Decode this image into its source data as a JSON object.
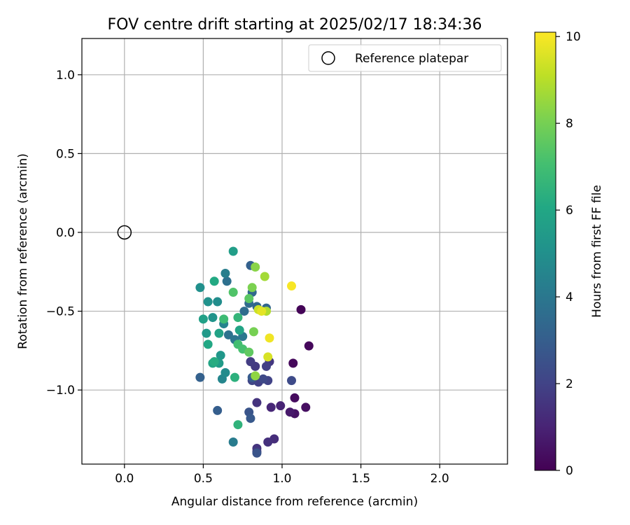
{
  "chart_data": {
    "type": "scatter",
    "title": "FOV centre drift starting at 2025/02/17 18:34:36",
    "xlabel": "Angular distance from reference (arcmin)",
    "ylabel": "Rotation from reference (arcmin)",
    "xlim": [
      -0.27,
      2.43
    ],
    "ylim": [
      -1.47,
      1.23
    ],
    "xticks": [
      0.0,
      0.5,
      1.0,
      1.5,
      2.0
    ],
    "xtick_labels": [
      "0.0",
      "0.5",
      "1.0",
      "1.5",
      "2.0"
    ],
    "yticks": [
      -1.0,
      -0.5,
      0.0,
      0.5,
      1.0
    ],
    "ytick_labels": [
      "−1.0",
      "−0.5",
      "0.0",
      "0.5",
      "1.0"
    ],
    "grid": true,
    "legend": {
      "label": "Reference platepar",
      "placement": "top-right"
    },
    "reference": {
      "x": 0.0,
      "y": 0.0
    },
    "colorbar": {
      "label": "Hours from first FF file",
      "colormap": "viridis",
      "range": [
        0,
        10.1
      ],
      "ticks": [
        0,
        2,
        4,
        6,
        8,
        10
      ],
      "tick_labels": [
        "0",
        "2",
        "4",
        "6",
        "8",
        "10"
      ]
    },
    "points": [
      {
        "x": 1.12,
        "y": -0.49,
        "c": 0.1
      },
      {
        "x": 1.17,
        "y": -0.72,
        "c": 0.2
      },
      {
        "x": 1.07,
        "y": -0.83,
        "c": 0.2
      },
      {
        "x": 1.08,
        "y": -1.05,
        "c": 0.3
      },
      {
        "x": 1.15,
        "y": -1.11,
        "c": 0.4
      },
      {
        "x": 1.08,
        "y": -1.15,
        "c": 0.5
      },
      {
        "x": 1.05,
        "y": -1.14,
        "c": 0.7
      },
      {
        "x": 0.99,
        "y": -1.1,
        "c": 1.0
      },
      {
        "x": 0.93,
        "y": -1.11,
        "c": 1.1
      },
      {
        "x": 0.95,
        "y": -1.31,
        "c": 1.3
      },
      {
        "x": 0.91,
        "y": -1.33,
        "c": 1.4
      },
      {
        "x": 0.84,
        "y": -1.08,
        "c": 1.5
      },
      {
        "x": 0.92,
        "y": -0.82,
        "c": 1.6
      },
      {
        "x": 0.84,
        "y": -1.37,
        "c": 1.5
      },
      {
        "x": 0.84,
        "y": -1.39,
        "c": 1.7
      },
      {
        "x": 0.83,
        "y": -0.85,
        "c": 1.7
      },
      {
        "x": 0.8,
        "y": -0.82,
        "c": 1.8
      },
      {
        "x": 0.85,
        "y": -0.95,
        "c": 1.9
      },
      {
        "x": 0.9,
        "y": -0.85,
        "c": 1.9
      },
      {
        "x": 0.91,
        "y": -0.94,
        "c": 2.0
      },
      {
        "x": 0.81,
        "y": -0.94,
        "c": 2.1
      },
      {
        "x": 0.88,
        "y": -0.93,
        "c": 2.2
      },
      {
        "x": 1.06,
        "y": -0.94,
        "c": 2.3
      },
      {
        "x": 0.84,
        "y": -1.4,
        "c": 2.6
      },
      {
        "x": 0.79,
        "y": -1.14,
        "c": 2.6
      },
      {
        "x": 0.8,
        "y": -1.18,
        "c": 2.8
      },
      {
        "x": 0.81,
        "y": -0.92,
        "c": 2.9
      },
      {
        "x": 0.59,
        "y": -1.13,
        "c": 3.0
      },
      {
        "x": 0.48,
        "y": -0.92,
        "c": 3.1
      },
      {
        "x": 0.8,
        "y": -0.21,
        "c": 3.1
      },
      {
        "x": 0.84,
        "y": -0.47,
        "c": 3.3
      },
      {
        "x": 0.9,
        "y": -0.48,
        "c": 3.3
      },
      {
        "x": 0.81,
        "y": -0.38,
        "c": 3.4
      },
      {
        "x": 0.79,
        "y": -0.45,
        "c": 3.5
      },
      {
        "x": 0.76,
        "y": -0.5,
        "c": 3.6
      },
      {
        "x": 0.65,
        "y": -0.31,
        "c": 3.7
      },
      {
        "x": 0.66,
        "y": -0.65,
        "c": 3.8
      },
      {
        "x": 0.7,
        "y": -0.68,
        "c": 3.9
      },
      {
        "x": 0.75,
        "y": -0.66,
        "c": 4.0
      },
      {
        "x": 0.69,
        "y": -1.33,
        "c": 4.2
      },
      {
        "x": 0.64,
        "y": -0.26,
        "c": 4.3
      },
      {
        "x": 0.63,
        "y": -0.58,
        "c": 4.5
      },
      {
        "x": 0.62,
        "y": -0.93,
        "c": 4.6
      },
      {
        "x": 0.64,
        "y": -0.89,
        "c": 4.8
      },
      {
        "x": 0.59,
        "y": -0.44,
        "c": 4.9
      },
      {
        "x": 0.48,
        "y": -0.35,
        "c": 5.0
      },
      {
        "x": 0.53,
        "y": -0.44,
        "c": 5.1
      },
      {
        "x": 0.56,
        "y": -0.54,
        "c": 5.2
      },
      {
        "x": 0.61,
        "y": -0.78,
        "c": 5.3
      },
      {
        "x": 0.52,
        "y": -0.64,
        "c": 5.4
      },
      {
        "x": 0.6,
        "y": -0.83,
        "c": 5.5
      },
      {
        "x": 0.69,
        "y": -0.12,
        "c": 5.6
      },
      {
        "x": 0.5,
        "y": -0.55,
        "c": 5.7
      },
      {
        "x": 0.6,
        "y": -0.64,
        "c": 5.8
      },
      {
        "x": 0.73,
        "y": -0.62,
        "c": 5.9
      },
      {
        "x": 0.56,
        "y": -0.83,
        "c": 5.9
      },
      {
        "x": 0.53,
        "y": -0.71,
        "c": 6.0
      },
      {
        "x": 0.57,
        "y": -0.31,
        "c": 6.1
      },
      {
        "x": 0.57,
        "y": -0.82,
        "c": 6.2
      },
      {
        "x": 0.7,
        "y": -0.92,
        "c": 6.4
      },
      {
        "x": 0.72,
        "y": -1.22,
        "c": 6.5
      },
      {
        "x": 0.72,
        "y": -0.54,
        "c": 6.6
      },
      {
        "x": 0.63,
        "y": -0.55,
        "c": 6.9
      },
      {
        "x": 0.72,
        "y": -0.71,
        "c": 7.0
      },
      {
        "x": 0.75,
        "y": -0.74,
        "c": 7.1
      },
      {
        "x": 0.69,
        "y": -0.38,
        "c": 7.3
      },
      {
        "x": 0.79,
        "y": -0.42,
        "c": 7.5
      },
      {
        "x": 0.79,
        "y": -0.76,
        "c": 7.6
      },
      {
        "x": 0.82,
        "y": -0.63,
        "c": 8.0
      },
      {
        "x": 0.81,
        "y": -0.35,
        "c": 8.1
      },
      {
        "x": 0.83,
        "y": -0.22,
        "c": 8.3
      },
      {
        "x": 0.83,
        "y": -0.91,
        "c": 8.4
      },
      {
        "x": 0.89,
        "y": -0.28,
        "c": 8.7
      },
      {
        "x": 0.9,
        "y": -0.5,
        "c": 8.9
      },
      {
        "x": 0.85,
        "y": -0.49,
        "c": 9.3
      },
      {
        "x": 0.91,
        "y": -0.79,
        "c": 9.5
      },
      {
        "x": 0.87,
        "y": -0.5,
        "c": 9.7
      },
      {
        "x": 0.92,
        "y": -0.67,
        "c": 9.9
      },
      {
        "x": 1.06,
        "y": -0.34,
        "c": 10.0
      }
    ]
  }
}
